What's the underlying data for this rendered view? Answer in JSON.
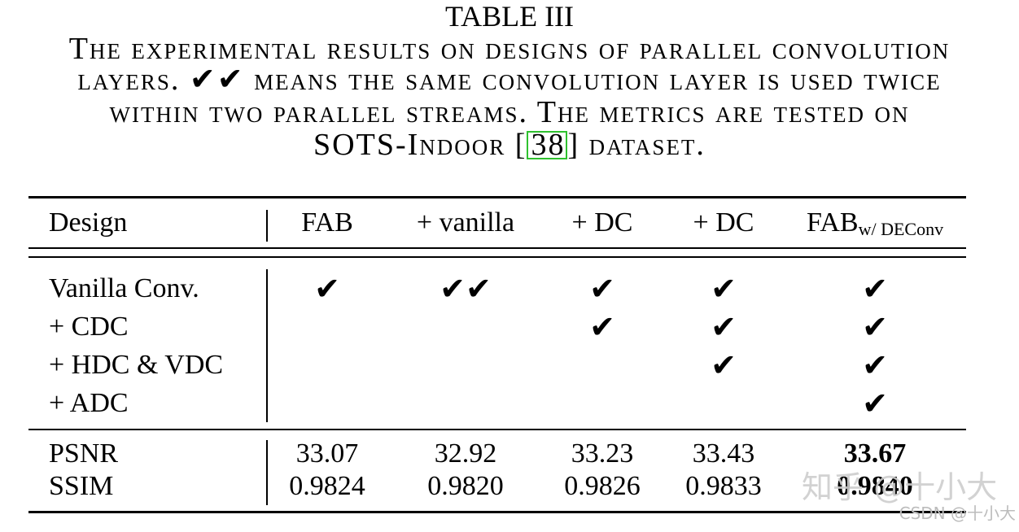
{
  "table_label": "TABLE III",
  "caption": {
    "lines": [
      "The experimental results on designs of parallel convolution",
      "layers. ✔✔ means the same convolution layer is used twice",
      "within two parallel streams. The metrics are tested on"
    ],
    "last_line_pre": "SOTS-Indoor [",
    "citation": "38",
    "last_line_post": "] dataset."
  },
  "table": {
    "row_header": "Design",
    "columns": [
      {
        "label": "FAB"
      },
      {
        "label": "+ vanilla"
      },
      {
        "label": "+ DC"
      },
      {
        "label": "+ DC"
      },
      {
        "label": "FAB",
        "subscript": "w/ DEConv"
      }
    ],
    "design_rows": [
      {
        "label": "Vanilla Conv.",
        "cells": [
          "✔",
          "✔✔",
          "✔",
          "✔",
          "✔"
        ]
      },
      {
        "label": "+ CDC",
        "cells": [
          "",
          "",
          "✔",
          "✔",
          "✔"
        ]
      },
      {
        "label": "+ HDC & VDC",
        "cells": [
          "",
          "",
          "",
          "✔",
          "✔"
        ]
      },
      {
        "label": "+ ADC",
        "cells": [
          "",
          "",
          "",
          "",
          "✔"
        ]
      }
    ],
    "metric_rows": [
      {
        "label": "PSNR",
        "values": [
          "33.07",
          "32.92",
          "33.23",
          "33.43",
          "33.67"
        ],
        "bold": [
          false,
          false,
          false,
          false,
          true
        ]
      },
      {
        "label": "SSIM",
        "values": [
          "0.9824",
          "0.9820",
          "0.9826",
          "0.9833",
          "0.9840"
        ],
        "bold": [
          false,
          false,
          false,
          false,
          true
        ]
      }
    ]
  },
  "watermarks": {
    "zhihu": "知乎 @十小大",
    "csdn": "CSDN @十小大"
  },
  "colors": {
    "text": "#000000",
    "citation_box": "#2fc12f",
    "watermark": "#cdcdcd"
  }
}
